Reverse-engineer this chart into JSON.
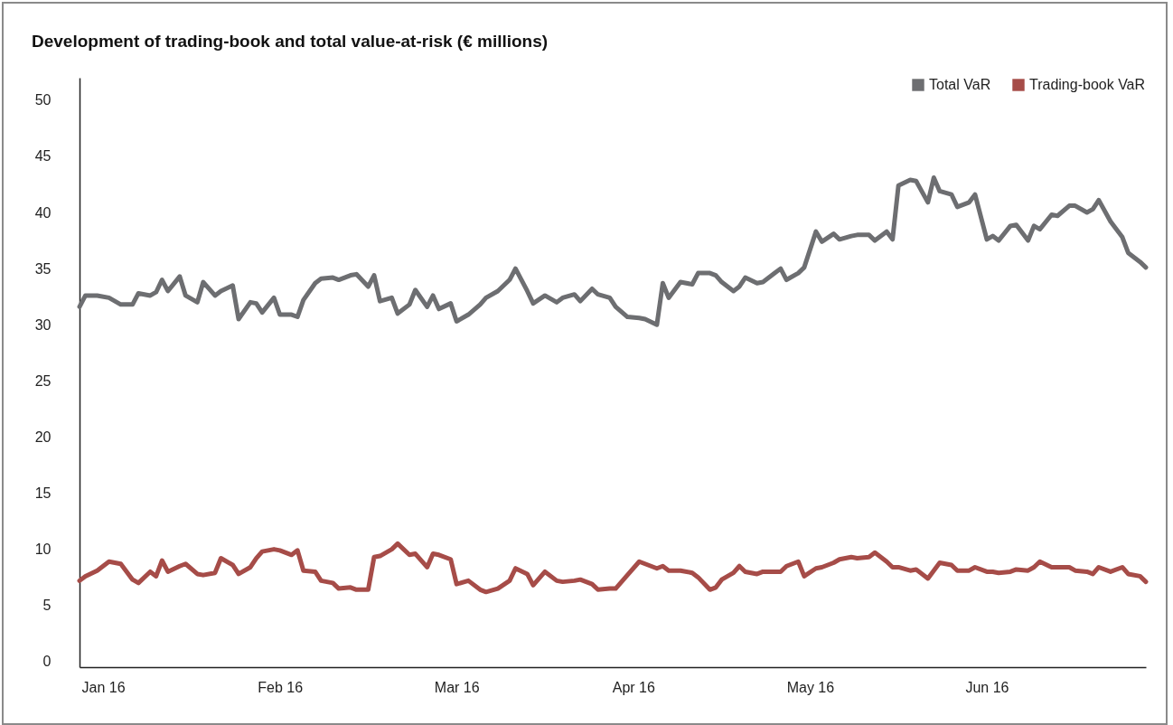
{
  "chart_data": {
    "type": "line",
    "title": "Development of trading-book and total value-at-risk (€ millions)",
    "x": [
      "2016-01-01",
      "2016-01-02",
      "2016-01-04",
      "2016-01-06",
      "2016-01-08",
      "2016-01-10",
      "2016-01-11",
      "2016-01-13",
      "2016-01-14",
      "2016-01-15",
      "2016-01-16",
      "2016-01-18",
      "2016-01-19",
      "2016-01-21",
      "2016-01-22",
      "2016-01-24",
      "2016-01-25",
      "2016-01-27",
      "2016-01-28",
      "2016-01-30",
      "2016-01-31",
      "2016-02-01",
      "2016-02-03",
      "2016-02-04",
      "2016-02-06",
      "2016-02-07",
      "2016-02-08",
      "2016-02-10",
      "2016-02-11",
      "2016-02-13",
      "2016-02-14",
      "2016-02-16",
      "2016-02-17",
      "2016-02-19",
      "2016-02-20",
      "2016-02-21",
      "2016-02-23",
      "2016-02-24",
      "2016-02-26",
      "2016-02-27",
      "2016-02-29",
      "2016-03-01",
      "2016-03-02",
      "2016-03-04",
      "2016-03-05",
      "2016-03-07",
      "2016-03-09",
      "2016-03-10",
      "2016-03-12",
      "2016-03-14",
      "2016-03-15",
      "2016-03-17",
      "2016-03-18",
      "2016-03-20",
      "2016-03-22",
      "2016-03-23",
      "2016-03-25",
      "2016-03-26",
      "2016-03-28",
      "2016-03-29",
      "2016-03-31",
      "2016-04-01",
      "2016-04-03",
      "2016-04-05",
      "2016-04-06",
      "2016-04-08",
      "2016-04-09",
      "2016-04-10",
      "2016-04-12",
      "2016-04-14",
      "2016-04-15",
      "2016-04-17",
      "2016-04-18",
      "2016-04-19",
      "2016-04-21",
      "2016-04-22",
      "2016-04-23",
      "2016-04-25",
      "2016-04-26",
      "2016-04-28",
      "2016-04-29",
      "2016-04-30",
      "2016-05-02",
      "2016-05-03",
      "2016-05-05",
      "2016-05-06",
      "2016-05-08",
      "2016-05-09",
      "2016-05-11",
      "2016-05-12",
      "2016-05-14",
      "2016-05-15",
      "2016-05-17",
      "2016-05-18",
      "2016-05-19",
      "2016-05-21",
      "2016-05-22",
      "2016-05-24",
      "2016-05-25",
      "2016-05-26",
      "2016-05-28",
      "2016-05-29",
      "2016-05-31",
      "2016-06-01",
      "2016-06-03",
      "2016-06-04",
      "2016-06-05",
      "2016-06-07",
      "2016-06-08",
      "2016-06-10",
      "2016-06-11",
      "2016-06-12",
      "2016-06-14",
      "2016-06-15",
      "2016-06-17",
      "2016-06-18",
      "2016-06-20",
      "2016-06-21",
      "2016-06-22",
      "2016-06-24",
      "2016-06-26",
      "2016-06-27",
      "2016-06-29",
      "2016-06-30"
    ],
    "series": [
      {
        "name": "Total VaR",
        "color": "#6d6e71",
        "values": [
          31.6,
          32.6,
          32.6,
          32.4,
          31.8,
          31.8,
          32.8,
          32.6,
          32.9,
          34.0,
          33.0,
          34.3,
          32.6,
          32.0,
          33.8,
          32.6,
          33.0,
          33.5,
          30.5,
          32.0,
          31.9,
          31.1,
          32.4,
          30.9,
          30.9,
          30.7,
          32.2,
          33.7,
          34.1,
          34.2,
          34.0,
          34.4,
          34.5,
          33.4,
          34.4,
          32.1,
          32.4,
          31.0,
          31.8,
          33.1,
          31.6,
          32.6,
          31.4,
          31.9,
          30.3,
          30.9,
          31.8,
          32.4,
          33.0,
          34.0,
          35.0,
          33.0,
          31.9,
          32.6,
          32.0,
          32.4,
          32.7,
          32.1,
          33.2,
          32.7,
          32.4,
          31.6,
          30.7,
          30.6,
          30.5,
          30.0,
          33.7,
          32.4,
          33.8,
          33.6,
          34.6,
          34.6,
          34.4,
          33.8,
          33.0,
          33.4,
          34.2,
          33.7,
          33.8,
          34.6,
          35.0,
          34.0,
          34.6,
          35.1,
          38.3,
          37.4,
          38.1,
          37.6,
          37.9,
          38.0,
          38.0,
          37.5,
          38.3,
          37.6,
          42.4,
          42.9,
          42.8,
          40.9,
          43.1,
          41.9,
          41.6,
          40.5,
          40.9,
          41.6,
          37.6,
          37.9,
          37.5,
          38.8,
          38.9,
          37.5,
          38.8,
          38.5,
          39.8,
          39.7,
          40.6,
          40.6,
          40.0,
          40.3,
          41.1,
          39.2,
          37.8,
          36.4,
          35.6,
          35.1
        ]
      },
      {
        "name": "Trading-book VaR",
        "color": "#a64c48",
        "values": [
          7.2,
          7.6,
          8.1,
          8.9,
          8.7,
          7.3,
          7.0,
          8.0,
          7.6,
          9.0,
          8.0,
          8.5,
          8.7,
          7.8,
          7.7,
          7.9,
          9.2,
          8.6,
          7.8,
          8.4,
          9.2,
          9.8,
          10.0,
          9.9,
          9.5,
          9.9,
          8.1,
          8.0,
          7.2,
          7.0,
          6.5,
          6.6,
          6.4,
          6.4,
          9.3,
          9.4,
          10.0,
          10.5,
          9.5,
          9.6,
          8.4,
          9.6,
          9.5,
          9.1,
          6.9,
          7.2,
          6.4,
          6.2,
          6.5,
          7.2,
          8.3,
          7.8,
          6.8,
          8.0,
          7.2,
          7.1,
          7.2,
          7.3,
          6.9,
          6.4,
          6.5,
          6.5,
          7.7,
          8.9,
          8.7,
          8.3,
          8.5,
          8.1,
          8.1,
          7.9,
          7.5,
          6.4,
          6.6,
          7.3,
          7.9,
          8.5,
          8.0,
          7.8,
          8.0,
          8.0,
          8.0,
          8.5,
          8.9,
          7.6,
          8.3,
          8.4,
          8.8,
          9.1,
          9.3,
          9.2,
          9.3,
          9.7,
          8.9,
          8.4,
          8.4,
          8.1,
          8.2,
          7.4,
          8.1,
          8.8,
          8.6,
          8.1,
          8.1,
          8.4,
          8.0,
          8.0,
          7.9,
          8.0,
          8.2,
          8.1,
          8.4,
          8.9,
          8.4,
          8.4,
          8.4,
          8.1,
          8.0,
          7.8,
          8.4,
          8.0,
          8.4,
          7.8,
          7.6,
          7.1
        ]
      }
    ],
    "xlim": [
      "2016-01-01",
      "2016-06-30"
    ],
    "xticks": [
      {
        "value": "2016-01-05",
        "label": "Jan 16"
      },
      {
        "value": "2016-02-04",
        "label": "Feb 16"
      },
      {
        "value": "2016-03-05",
        "label": "Mar 16"
      },
      {
        "value": "2016-04-04",
        "label": "Apr 16"
      },
      {
        "value": "2016-05-04",
        "label": "May 16"
      },
      {
        "value": "2016-06-03",
        "label": "Jun 16"
      }
    ],
    "ylim": [
      -0.5,
      52
    ],
    "yticks": [
      0,
      5,
      10,
      15,
      20,
      25,
      30,
      35,
      40,
      45,
      50
    ],
    "legend": "top right"
  }
}
